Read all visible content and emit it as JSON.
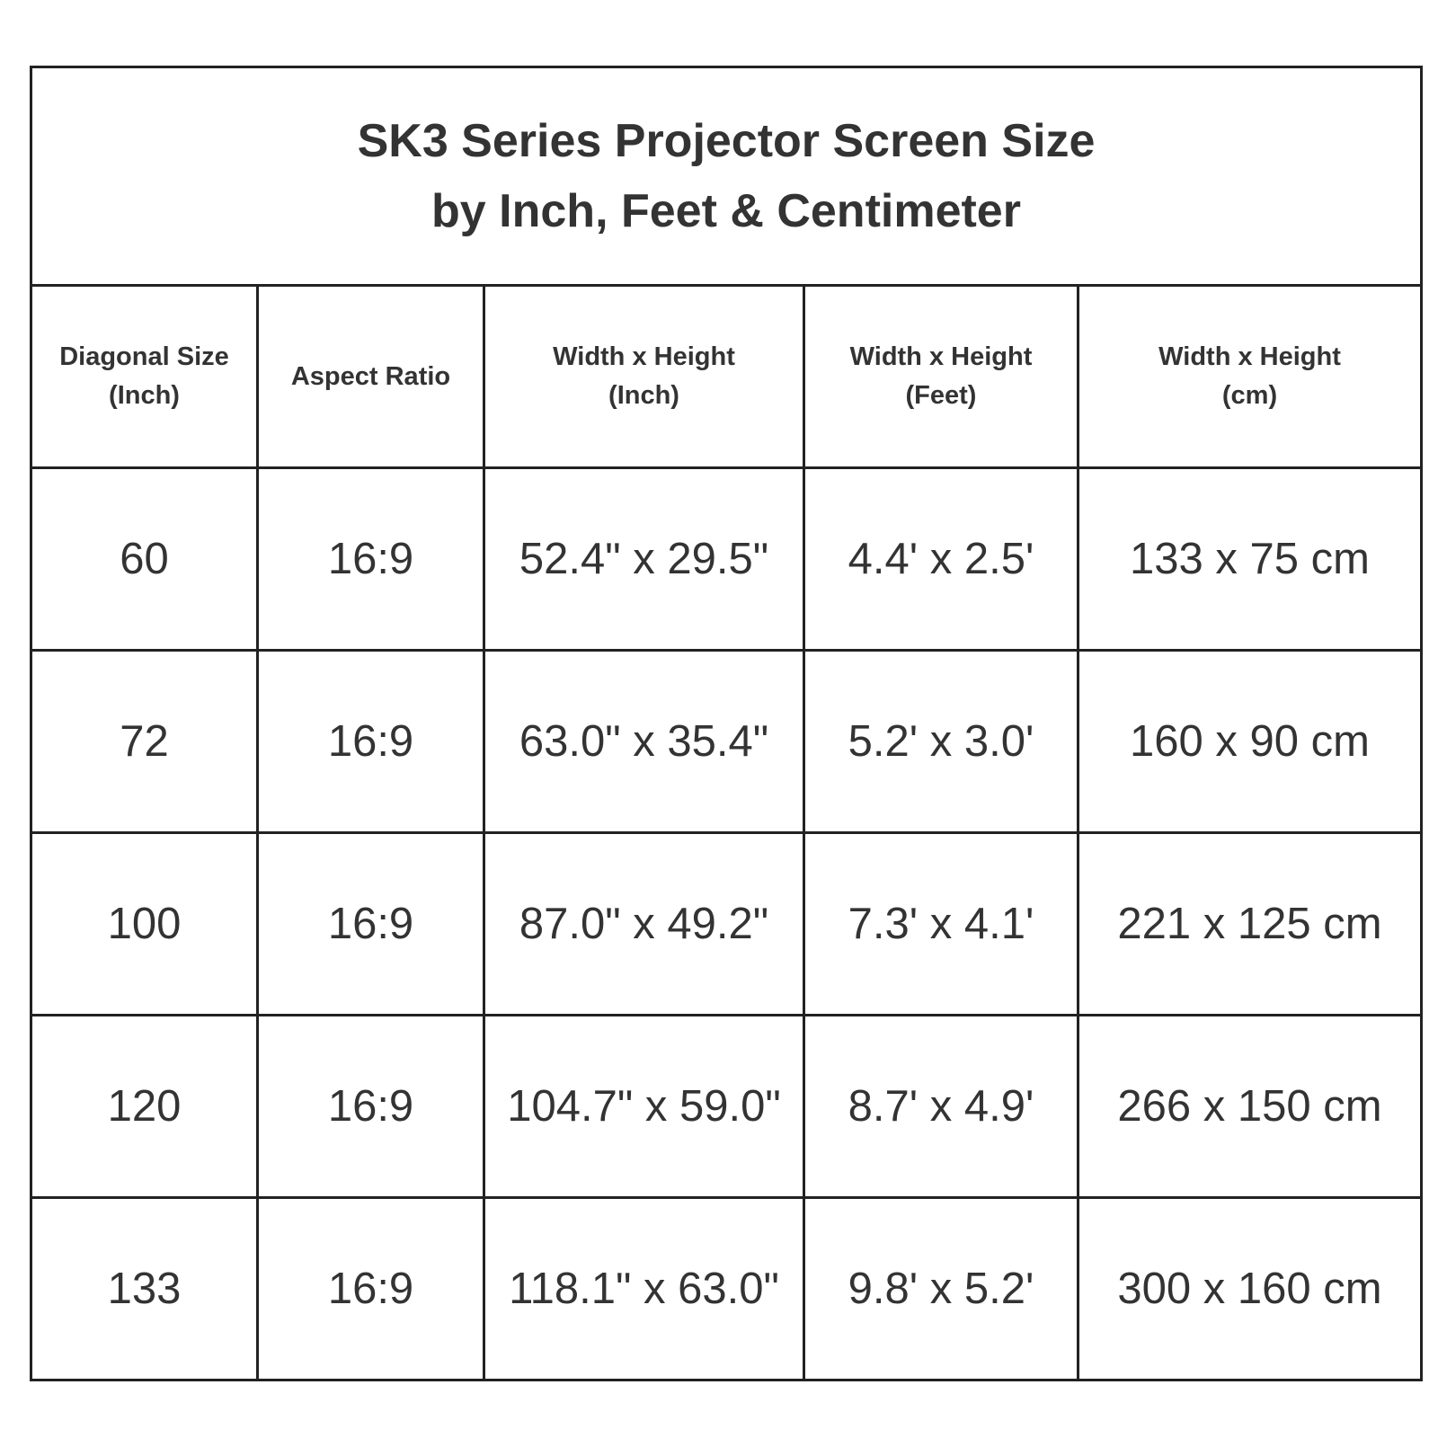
{
  "title": {
    "line1": "SK3 Series Projector Screen Size",
    "line2": "by Inch,   Feet & Centimeter"
  },
  "columns": [
    {
      "line1": "Diagonal Size",
      "line2": "(Inch)"
    },
    {
      "line1": "Aspect Ratio",
      "line2": ""
    },
    {
      "line1": "Width x Height",
      "line2": "(Inch)"
    },
    {
      "line1": "Width x Height",
      "line2": "(Feet)"
    },
    {
      "line1": "Width x Height",
      "line2": "(cm)"
    }
  ],
  "rows": [
    [
      "60",
      "16:9",
      "52.4\" x 29.5\"",
      "4.4' x 2.5'",
      "133 x 75 cm"
    ],
    [
      "72",
      "16:9",
      "63.0\" x 35.4\"",
      "5.2' x 3.0'",
      "160 x 90 cm"
    ],
    [
      "100",
      "16:9",
      "87.0\" x 49.2\"",
      "7.3' x 4.1'",
      "221 x 125 cm"
    ],
    [
      "120",
      "16:9",
      "104.7\" x 59.0\"",
      "8.7' x 4.9'",
      "266 x 150 cm"
    ],
    [
      "133",
      "16:9",
      "118.1\" x 63.0\"",
      "9.8' x 5.2'",
      "300 x 160 cm"
    ]
  ]
}
